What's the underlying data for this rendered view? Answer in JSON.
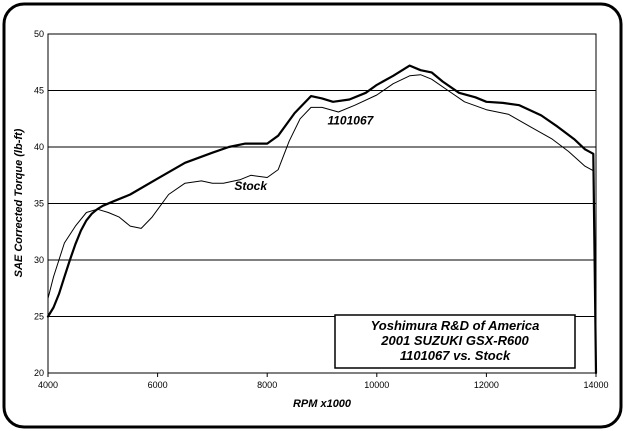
{
  "chart_data": {
    "type": "line",
    "xlabel": "RPM x1000",
    "ylabel": "SAE Corrected Torque (lb-ft)",
    "xlim": [
      4000,
      14000
    ],
    "ylim": [
      20,
      50
    ],
    "x_ticks": [
      4000,
      6000,
      8000,
      10000,
      12000,
      14000
    ],
    "y_ticks": [
      20,
      25,
      30,
      35,
      40,
      45,
      50
    ],
    "grid": "horizontal",
    "annotation_lines": [
      "Yoshimura R&D of America",
      "2001 SUZUKI GSX-R600",
      "1101067 vs. Stock"
    ],
    "series": [
      {
        "name": "1101067",
        "stroke_width": 2.2,
        "points": [
          [
            4000,
            25.0
          ],
          [
            4100,
            25.8
          ],
          [
            4200,
            27.0
          ],
          [
            4300,
            28.5
          ],
          [
            4400,
            30.0
          ],
          [
            4500,
            31.4
          ],
          [
            4600,
            32.6
          ],
          [
            4700,
            33.5
          ],
          [
            4800,
            34.1
          ],
          [
            4900,
            34.5
          ],
          [
            5000,
            34.8
          ],
          [
            5200,
            35.2
          ],
          [
            5500,
            35.8
          ],
          [
            6000,
            37.2
          ],
          [
            6500,
            38.6
          ],
          [
            7000,
            39.5
          ],
          [
            7300,
            40.0
          ],
          [
            7600,
            40.3
          ],
          [
            8000,
            40.3
          ],
          [
            8200,
            41.0
          ],
          [
            8500,
            43.0
          ],
          [
            8800,
            44.5
          ],
          [
            9000,
            44.3
          ],
          [
            9200,
            44.0
          ],
          [
            9500,
            44.2
          ],
          [
            9800,
            44.8
          ],
          [
            10000,
            45.5
          ],
          [
            10300,
            46.3
          ],
          [
            10600,
            47.2
          ],
          [
            10800,
            46.8
          ],
          [
            11000,
            46.6
          ],
          [
            11200,
            45.8
          ],
          [
            11500,
            44.8
          ],
          [
            11800,
            44.4
          ],
          [
            12000,
            44.0
          ],
          [
            12300,
            43.9
          ],
          [
            12600,
            43.7
          ],
          [
            13000,
            42.8
          ],
          [
            13300,
            41.8
          ],
          [
            13600,
            40.7
          ],
          [
            13800,
            39.8
          ],
          [
            13950,
            39.4
          ],
          [
            14000,
            20.0
          ]
        ]
      },
      {
        "name": "Stock",
        "stroke_width": 1.0,
        "points": [
          [
            4000,
            26.6
          ],
          [
            4100,
            28.5
          ],
          [
            4300,
            31.5
          ],
          [
            4500,
            33.0
          ],
          [
            4700,
            34.2
          ],
          [
            4900,
            34.5
          ],
          [
            5100,
            34.2
          ],
          [
            5300,
            33.8
          ],
          [
            5500,
            33.0
          ],
          [
            5700,
            32.8
          ],
          [
            5900,
            33.8
          ],
          [
            6200,
            35.8
          ],
          [
            6500,
            36.8
          ],
          [
            6800,
            37.0
          ],
          [
            7000,
            36.8
          ],
          [
            7200,
            36.8
          ],
          [
            7500,
            37.1
          ],
          [
            7700,
            37.5
          ],
          [
            8000,
            37.3
          ],
          [
            8200,
            38.0
          ],
          [
            8400,
            40.5
          ],
          [
            8600,
            42.5
          ],
          [
            8800,
            43.5
          ],
          [
            9000,
            43.5
          ],
          [
            9300,
            43.1
          ],
          [
            9600,
            43.7
          ],
          [
            10000,
            44.6
          ],
          [
            10300,
            45.6
          ],
          [
            10600,
            46.3
          ],
          [
            10800,
            46.4
          ],
          [
            11000,
            46.0
          ],
          [
            11300,
            45.0
          ],
          [
            11600,
            44.0
          ],
          [
            12000,
            43.3
          ],
          [
            12400,
            42.9
          ],
          [
            12800,
            41.8
          ],
          [
            13200,
            40.7
          ],
          [
            13500,
            39.6
          ],
          [
            13800,
            38.3
          ],
          [
            13950,
            37.9
          ],
          [
            14000,
            20.0
          ]
        ]
      }
    ],
    "series_labels": [
      {
        "text": "1101067",
        "at": [
          9100,
          42.0
        ]
      },
      {
        "text": "Stock",
        "at": [
          7400,
          36.2
        ]
      }
    ]
  }
}
